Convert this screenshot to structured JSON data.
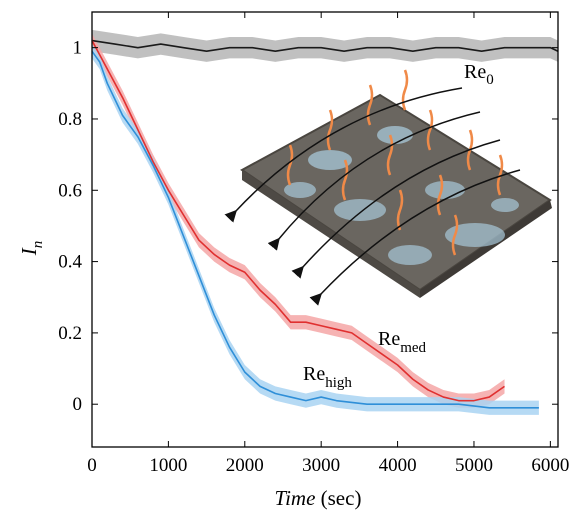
{
  "chart_data": {
    "type": "line",
    "title": "",
    "xlabel": {
      "main": "Time",
      "unit": "(sec)"
    },
    "ylabel": {
      "main": "I",
      "sub": "n"
    },
    "xlim": [
      0,
      6100
    ],
    "ylim": [
      -0.12,
      1.1
    ],
    "xticks": [
      0,
      1000,
      2000,
      3000,
      4000,
      5000,
      6000
    ],
    "xtick_labels": [
      "0",
      "1000",
      "2000",
      "3000",
      "4000",
      "5000",
      "6000"
    ],
    "yticks": [
      0,
      0.2,
      0.4,
      0.6,
      0.8,
      1
    ],
    "ytick_labels": [
      "0",
      "0.2",
      "0.4",
      "0.6",
      "0.8",
      "1"
    ],
    "grid": false,
    "series": [
      {
        "color": "#1a1a1a",
        "band_color": "#b5b5b5",
        "x": [
          0,
          300,
          600,
          900,
          1200,
          1500,
          1800,
          2100,
          2400,
          2700,
          3000,
          3300,
          3600,
          3900,
          4200,
          4500,
          4800,
          5100,
          5400,
          5700,
          6000,
          6100
        ],
        "y": [
          1.02,
          1.01,
          1.0,
          1.01,
          1.0,
          0.99,
          1.0,
          1.0,
          0.99,
          1.0,
          1.0,
          0.99,
          1.0,
          1.0,
          0.99,
          1.0,
          1.0,
          0.99,
          1.0,
          1.0,
          1.0,
          0.99
        ],
        "band": 0.03
      },
      {
        "color": "#e03030",
        "band_color": "#f4a6a6",
        "x": [
          0,
          100,
          200,
          400,
          600,
          800,
          1000,
          1200,
          1400,
          1600,
          1800,
          2000,
          2200,
          2400,
          2600,
          2800,
          3000,
          3200,
          3400,
          3600,
          3800,
          4000,
          4200,
          4400,
          4600,
          4800,
          5000,
          5200,
          5400
        ],
        "y": [
          1.02,
          0.98,
          0.94,
          0.86,
          0.77,
          0.68,
          0.6,
          0.53,
          0.46,
          0.42,
          0.39,
          0.37,
          0.32,
          0.28,
          0.23,
          0.23,
          0.22,
          0.21,
          0.2,
          0.17,
          0.14,
          0.11,
          0.07,
          0.04,
          0.02,
          0.01,
          0.01,
          0.02,
          0.05
        ],
        "band": 0.02
      },
      {
        "color": "#2f8fd8",
        "band_color": "#a9d3f2",
        "x": [
          0,
          100,
          200,
          400,
          600,
          800,
          1000,
          1200,
          1400,
          1600,
          1800,
          2000,
          2200,
          2400,
          2600,
          2800,
          3000,
          3200,
          3600,
          4000,
          4400,
          4800,
          5200,
          5600,
          5850
        ],
        "y": [
          0.99,
          0.96,
          0.9,
          0.81,
          0.75,
          0.67,
          0.58,
          0.47,
          0.36,
          0.25,
          0.16,
          0.09,
          0.05,
          0.03,
          0.02,
          0.01,
          0.02,
          0.01,
          0.0,
          0.0,
          0.0,
          0.0,
          -0.01,
          -0.01,
          -0.01
        ],
        "band": 0.02
      }
    ],
    "annotations": [
      {
        "main": "Re",
        "sub": "0"
      },
      {
        "main": "Re",
        "sub": "med"
      },
      {
        "main": "Re",
        "sub": "high"
      }
    ],
    "inset": {
      "icon": "turbulent-surface-illustration",
      "fill": "#6a6660",
      "highlight": "#a8c8d8",
      "plume_color": "#f08a48",
      "arrow_color": "#111111"
    }
  }
}
